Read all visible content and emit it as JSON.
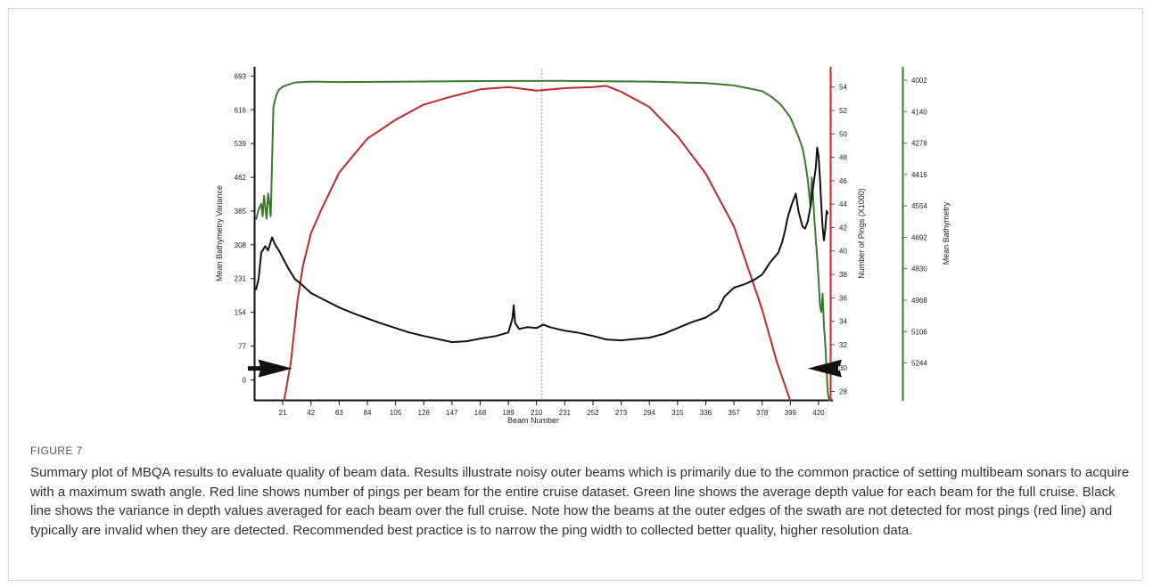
{
  "figure": {
    "label": "FIGURE 7",
    "caption": "Summary plot of MBQA results to evaluate quality of beam data. Results illustrate noisy outer beams which is primarily due to the common practice of setting multibeam sonars to acquire with a maximum swath angle. Red line shows number of pings per beam for the entire cruise dataset. Green line shows the average depth value for each beam for the full cruise. Black line shows the variance in depth values averaged for each beam over the full cruise. Note how the beams at the outer edges of the swath are not detected for most pings (red line) and typically are invalid when they are detected. Recommended best practice is to narrow the ping width to collected better quality, higher resolution data."
  },
  "chart_data": {
    "type": "line",
    "xlabel": "Beam Number",
    "ylabel_left": "Mean Bathymetry Variance",
    "ylabel_right1": "Number of Pings (X1000)",
    "ylabel_right2": "Mean Bathymetry",
    "x_ticks": [
      "21",
      "42",
      "63",
      "84",
      "105",
      "126",
      "147",
      "168",
      "189",
      "210",
      "231",
      "252",
      "273",
      "294",
      "315",
      "336",
      "357",
      "378",
      "399",
      "420"
    ],
    "y_left_ticks": [
      "693",
      "616",
      "539",
      "462",
      "385",
      "308",
      "231",
      "154",
      "77",
      "0"
    ],
    "y_right1_ticks": [
      "54",
      "52",
      "50",
      "48",
      "46",
      "44",
      "42",
      "40",
      "38",
      "36",
      "34",
      "32",
      "30",
      "28"
    ],
    "y_right2_ticks": [
      "4002",
      "4140",
      "4278",
      "4416",
      "4554",
      "4692",
      "4830",
      "4968",
      "5106",
      "5244"
    ],
    "xlim": [
      1,
      428
    ],
    "ylim_left": [
      -48,
      708
    ],
    "ylim_right1": [
      27.2,
      55.5
    ],
    "ylim_right2": [
      3955,
      5410
    ],
    "center_marker_x": 214,
    "arrows": [
      {
        "direction": "right",
        "x_tip": 28,
        "y_at": 26
      },
      {
        "direction": "left",
        "x_tip": 412,
        "y_at": 26
      }
    ],
    "series": [
      {
        "axis": "right1",
        "color": "#c0282d",
        "x": [
          22,
          27,
          32,
          36,
          42,
          50,
          63,
          84,
          105,
          126,
          147,
          168,
          189,
          210,
          231,
          252,
          262,
          273,
          294,
          315,
          336,
          357,
          378,
          389,
          399
        ],
        "y": [
          26.5,
          30.5,
          35.8,
          38.7,
          41.5,
          43.6,
          46.7,
          49.6,
          51.2,
          52.5,
          53.2,
          53.8,
          54.0,
          53.7,
          53.9,
          54.0,
          54.1,
          53.6,
          52.3,
          49.8,
          46.6,
          42.1,
          35.0,
          30.5,
          26.5
        ]
      },
      {
        "axis": "right2",
        "color": "#3c7a2e",
        "x": [
          1,
          3,
          5,
          6,
          7,
          8,
          9,
          10,
          11,
          12,
          13,
          14,
          16,
          18,
          21,
          30,
          42,
          63,
          105,
          168,
          231,
          294,
          336,
          357,
          378,
          385,
          392,
          399,
          405,
          408,
          410,
          412,
          413,
          414,
          415,
          416,
          417,
          418,
          419,
          420,
          421,
          422,
          423,
          424,
          425,
          426,
          427,
          428
        ],
        "y": [
          4615,
          4570,
          4545,
          4600,
          4510,
          4560,
          4610,
          4500,
          4540,
          4600,
          4360,
          4120,
          4070,
          4045,
          4030,
          4012,
          4008,
          4010,
          4009,
          4006,
          4005,
          4008,
          4015,
          4025,
          4050,
          4075,
          4110,
          4165,
          4250,
          4300,
          4360,
          4440,
          4500,
          4560,
          4430,
          4520,
          4620,
          4700,
          4780,
          4880,
          4990,
          5020,
          4940,
          5080,
          5160,
          5280,
          5380,
          5420
        ]
      },
      {
        "axis": "left",
        "color": "#111111",
        "x": [
          1,
          3,
          5,
          8,
          10,
          13,
          15,
          19,
          25,
          30,
          36,
          42,
          50,
          63,
          75,
          84,
          95,
          105,
          115,
          126,
          135,
          147,
          158,
          168,
          180,
          189,
          192,
          193,
          194,
          197,
          203,
          210,
          215,
          220,
          231,
          240,
          252,
          262,
          273,
          283,
          294,
          305,
          315,
          326,
          336,
          345,
          350,
          357,
          365,
          372,
          378,
          384,
          390,
          393,
          395,
          397,
          400,
          403,
          405,
          408,
          410,
          412,
          414,
          416,
          418,
          419,
          420,
          421,
          422,
          423,
          424,
          425,
          426,
          427
        ],
        "y": [
          205,
          230,
          290,
          305,
          295,
          325,
          310,
          290,
          255,
          230,
          215,
          198,
          185,
          165,
          150,
          140,
          128,
          118,
          108,
          100,
          94,
          86,
          88,
          94,
          100,
          108,
          140,
          170,
          130,
          116,
          120,
          118,
          126,
          120,
          112,
          108,
          100,
          92,
          90,
          93,
          96,
          105,
          118,
          132,
          142,
          160,
          190,
          210,
          218,
          228,
          240,
          268,
          290,
          315,
          340,
          370,
          400,
          425,
          385,
          350,
          345,
          362,
          395,
          440,
          485,
          530,
          510,
          460,
          400,
          348,
          318,
          345,
          385,
          378
        ]
      }
    ],
    "grid": false,
    "legend": "none"
  }
}
